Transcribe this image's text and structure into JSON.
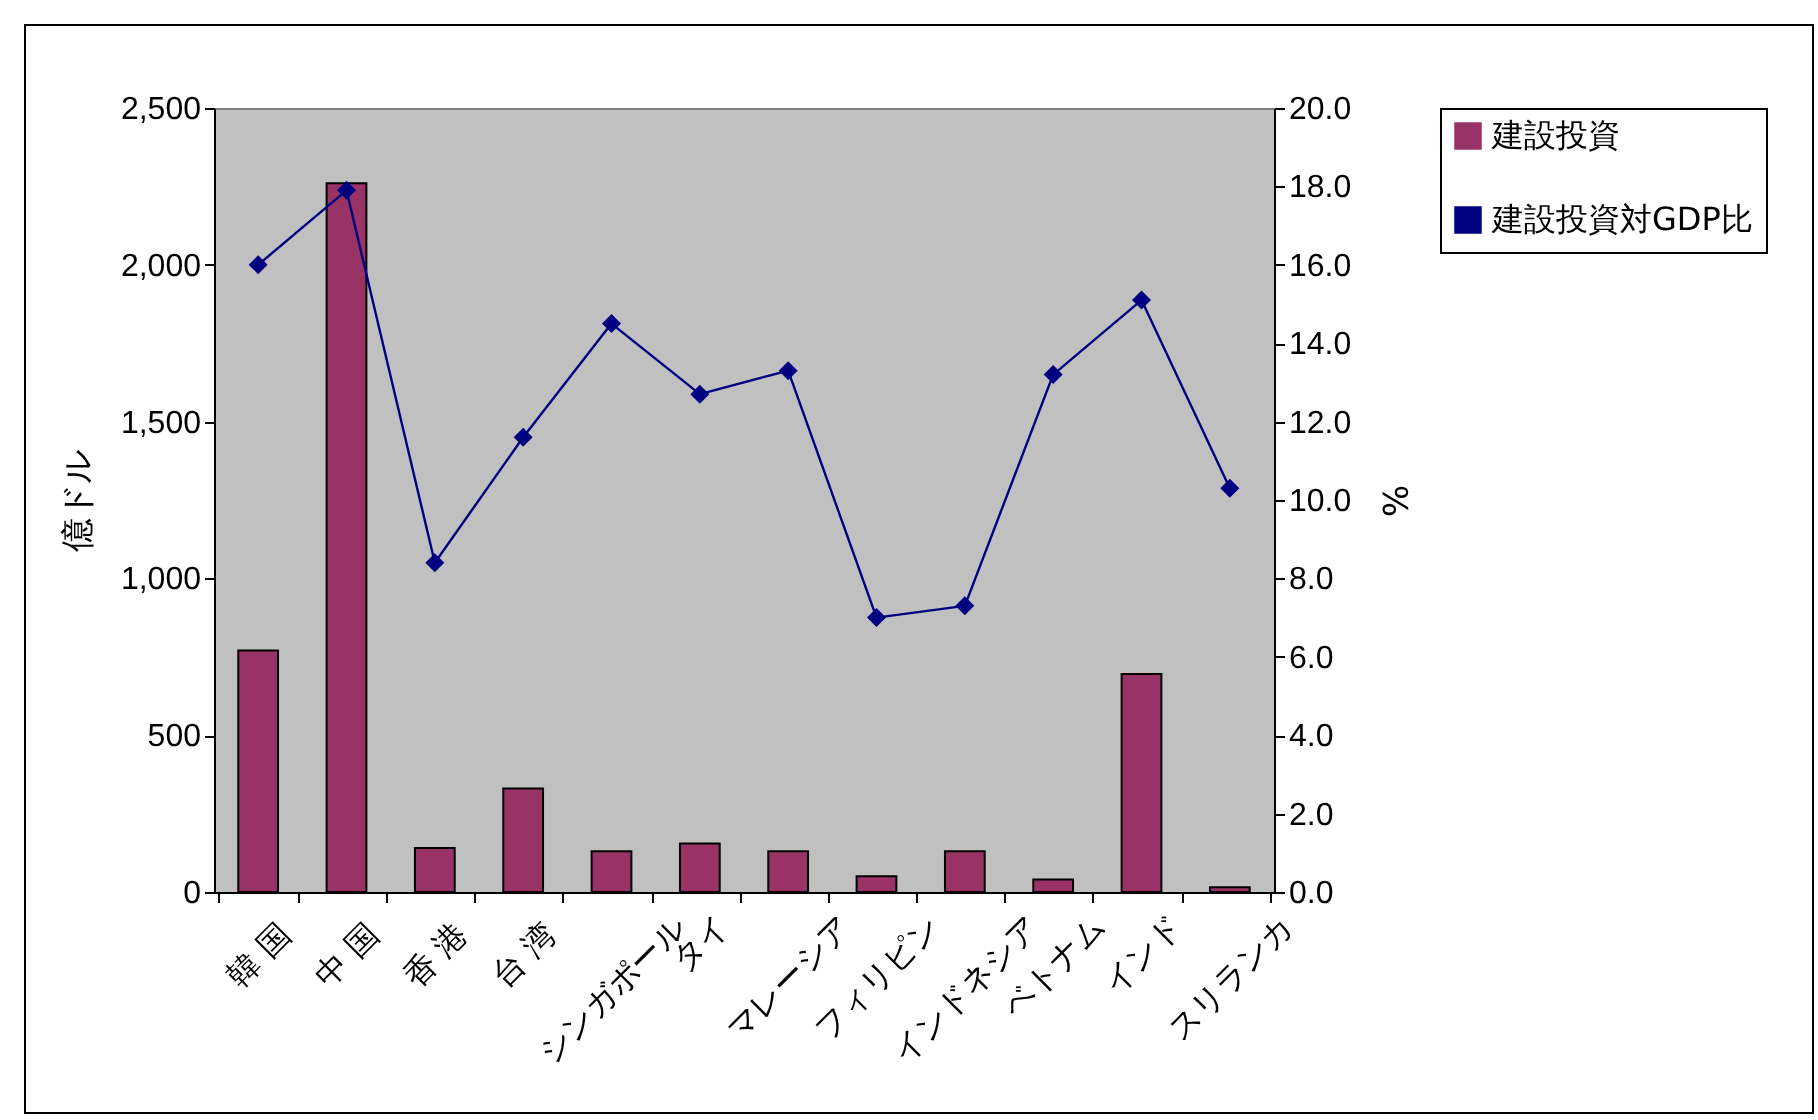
{
  "chart_data": {
    "type": "bar",
    "categories": [
      "韓 国",
      "中 国",
      "香 港",
      "台 湾",
      "シンガポール",
      "タイ",
      "マレーシア",
      "フィリピン",
      "インドネシア",
      "ベトナム",
      "インド",
      "スリランカ"
    ],
    "series": [
      {
        "name": "建設投資",
        "color": "#993366",
        "values": [
          770,
          2260,
          140,
          330,
          130,
          155,
          130,
          50,
          130,
          40,
          695,
          15
        ]
      },
      {
        "name": "建設投資対GDP比",
        "type": "line",
        "axis": "y2",
        "color": "#000080",
        "values": [
          16.0,
          17.9,
          8.4,
          11.6,
          14.5,
          12.7,
          13.3,
          7.0,
          7.3,
          13.2,
          15.1,
          10.3
        ]
      }
    ],
    "ylabel": "億ドル",
    "y2label": "%",
    "ylim": [
      0,
      2500
    ],
    "yticks": [
      0,
      500,
      {
        "value": 1000,
        "label": "1,000"
      },
      {
        "value": 1500,
        "label": "1,500"
      },
      {
        "value": 2000,
        "label": "2,000"
      },
      {
        "value": 2500,
        "label": "2,500"
      }
    ],
    "y2lim": [
      0,
      20
    ],
    "y2ticks": [
      {
        "value": 0,
        "label": "0.0"
      },
      {
        "value": 2,
        "label": "2.0"
      },
      {
        "value": 4,
        "label": "4.0"
      },
      {
        "value": 6,
        "label": "6.0"
      },
      {
        "value": 8,
        "label": "8.0"
      },
      {
        "value": 10,
        "label": "10.0"
      },
      {
        "value": 12,
        "label": "12.0"
      },
      {
        "value": 14,
        "label": "14.0"
      },
      {
        "value": 16,
        "label": "16.0"
      },
      {
        "value": 18,
        "label": "18.0"
      },
      {
        "value": 20,
        "label": "20.0"
      }
    ],
    "grid": false,
    "legend": "right",
    "marker": "diamond",
    "line_style": "solid"
  }
}
